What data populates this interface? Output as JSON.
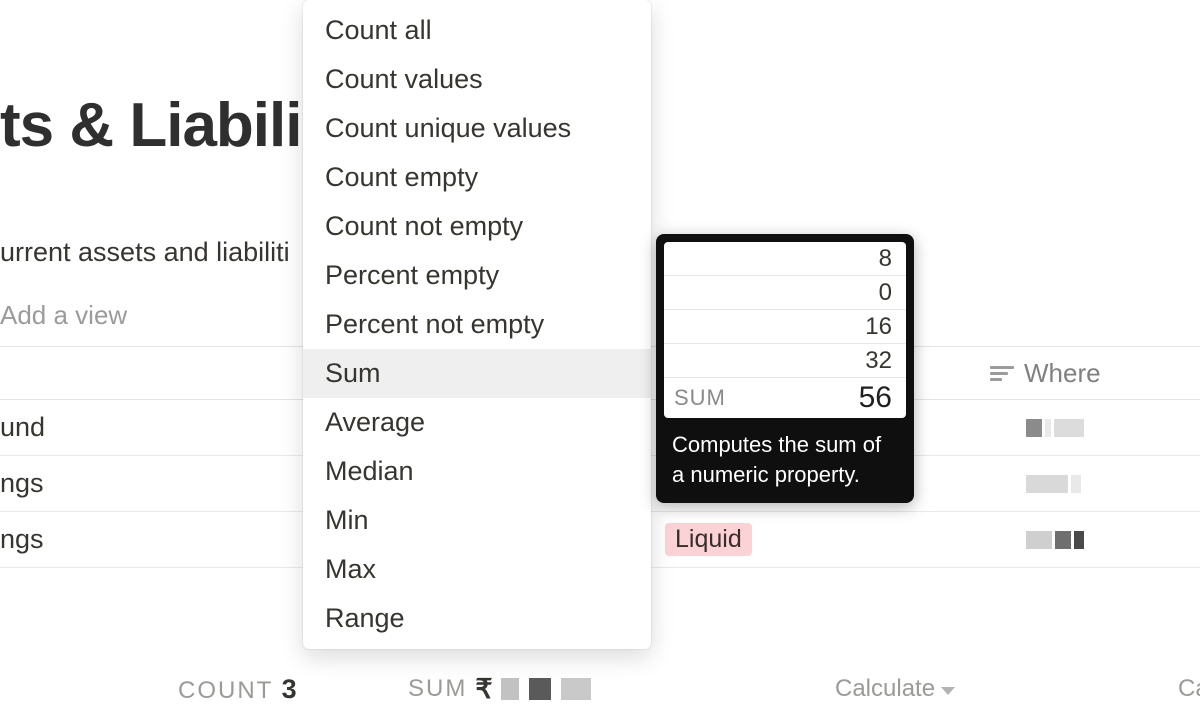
{
  "page": {
    "title_fragment": "ts & Liabili",
    "subtitle_fragment": "urrent assets and liabiliti",
    "add_view_label": "Add a view"
  },
  "columns": {
    "where_label": "Where"
  },
  "rows": [
    {
      "name_fragment": "und",
      "type_tag": null,
      "where_pixelated": [
        {
          "w": 16,
          "c": "#8b8b8b"
        },
        {
          "w": 6,
          "c": "#eaeaea"
        },
        {
          "w": 30,
          "c": "#dcdcdc"
        }
      ]
    },
    {
      "name_fragment": "ngs",
      "type_tag": "Liquid",
      "where_pixelated": [
        {
          "w": 42,
          "c": "#d9d9d9"
        },
        {
          "w": 10,
          "c": "#e9e9e9"
        }
      ]
    },
    {
      "name_fragment": "ngs",
      "type_tag": "Liquid",
      "where_pixelated": [
        {
          "w": 26,
          "c": "#cfcfcf"
        },
        {
          "w": 16,
          "c": "#6f6f6f"
        },
        {
          "w": 10,
          "c": "#4a4a4a"
        }
      ]
    }
  ],
  "footer": {
    "count_label": "COUNT",
    "count_value": "3",
    "sum_label": "SUM",
    "sum_currency": "₹",
    "sum_pixelated": [
      {
        "w": 18,
        "c": "#c2c2c2"
      },
      {
        "w": 4,
        "c": "#ffffff"
      },
      {
        "w": 22,
        "c": "#5a5a5a"
      },
      {
        "w": 4,
        "c": "#ffffff"
      },
      {
        "w": 30,
        "c": "#c9c9c9"
      }
    ],
    "calculate_label": "Calculate",
    "calculate_label_2": "Ca"
  },
  "dropdown": {
    "items": [
      "Count all",
      "Count values",
      "Count unique values",
      "Count empty",
      "Count not empty",
      "Percent empty",
      "Percent not empty",
      "Sum",
      "Average",
      "Median",
      "Min",
      "Max",
      "Range"
    ],
    "selected_index": 7
  },
  "popover": {
    "values": [
      "8",
      "0",
      "16",
      "32"
    ],
    "sum_label": "SUM",
    "sum_value": "56",
    "description": "Computes the sum of a numeric property."
  },
  "colors": {
    "tag_bg": "#fbd3d6",
    "menu_selected_bg": "#efefef",
    "popover_bg": "#0f0f0f"
  }
}
